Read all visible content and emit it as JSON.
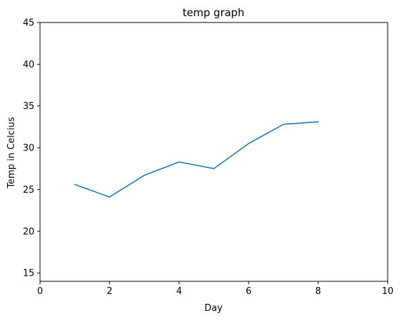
{
  "chart_data": {
    "type": "line",
    "title": "temp graph",
    "xlabel": "Day",
    "ylabel": "Temp in Celcius",
    "xlim": [
      0,
      10
    ],
    "ylim": [
      14,
      45
    ],
    "xticks": [
      0,
      2,
      4,
      6,
      8,
      10
    ],
    "yticks": [
      15,
      20,
      25,
      30,
      35,
      40,
      45
    ],
    "grid": false,
    "series": [
      {
        "color": "#1f77b4",
        "x": [
          1,
          2,
          3,
          4,
          5,
          6,
          7,
          8
        ],
        "y": [
          25.6,
          24.1,
          26.7,
          28.3,
          27.5,
          30.5,
          32.8,
          33.1
        ]
      }
    ]
  }
}
